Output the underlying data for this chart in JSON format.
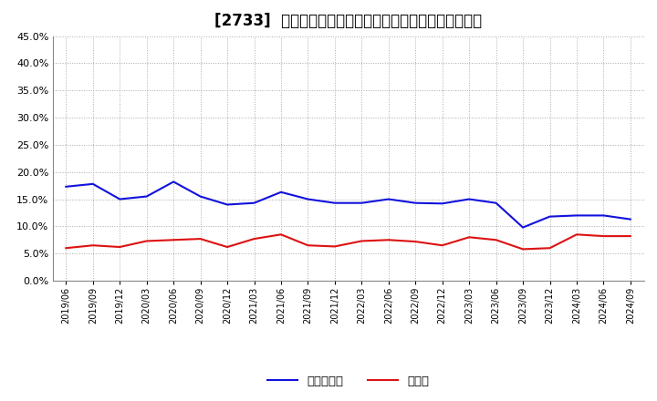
{
  "title": "[2733]  現預金、有利子負債の総資産に対する比率の推移",
  "ylim": [
    0.0,
    0.45
  ],
  "yticks": [
    0.0,
    0.05,
    0.1,
    0.15,
    0.2,
    0.25,
    0.3,
    0.35,
    0.4,
    0.45
  ],
  "x_labels": [
    "2019/06",
    "2019/09",
    "2019/12",
    "2020/03",
    "2020/06",
    "2020/09",
    "2020/12",
    "2021/03",
    "2021/06",
    "2021/09",
    "2021/12",
    "2022/03",
    "2022/06",
    "2022/09",
    "2022/12",
    "2023/03",
    "2023/06",
    "2023/09",
    "2023/12",
    "2024/03",
    "2024/06",
    "2024/09"
  ],
  "cash_values": [
    0.06,
    0.065,
    0.062,
    0.073,
    0.075,
    0.077,
    0.062,
    0.077,
    0.085,
    0.065,
    0.063,
    0.073,
    0.075,
    0.072,
    0.065,
    0.08,
    0.075,
    0.058,
    0.06,
    0.085,
    0.082,
    0.082
  ],
  "debt_values": [
    0.173,
    0.178,
    0.15,
    0.155,
    0.182,
    0.155,
    0.14,
    0.143,
    0.163,
    0.15,
    0.143,
    0.143,
    0.15,
    0.143,
    0.142,
    0.15,
    0.143,
    0.098,
    0.118,
    0.12,
    0.12,
    0.113
  ],
  "cash_color": "#dd1111",
  "debt_color": "#1111dd",
  "background_color": "#ffffff",
  "grid_color": "#aaaaaa",
  "title_fontsize": 12,
  "legend_cash": "現預金",
  "legend_debt": "有利子負債"
}
